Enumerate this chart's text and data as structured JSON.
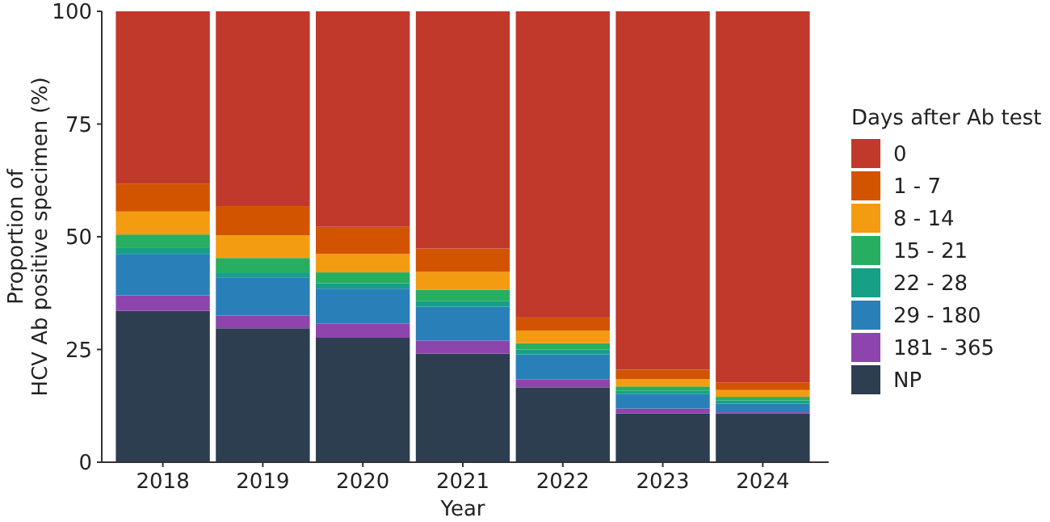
{
  "chart_data": {
    "type": "bar",
    "stacked": true,
    "xlabel": "Year",
    "ylabel": "Proportion of\nHCV Ab positive specimen (%)",
    "legend_title": "Days after Ab test",
    "legend": "right",
    "categories": [
      "2018",
      "2019",
      "2020",
      "2021",
      "2022",
      "2023",
      "2024"
    ],
    "ylim": [
      0,
      100
    ],
    "yticks": [
      0,
      25,
      50,
      75,
      100
    ],
    "series": [
      {
        "name": "NP",
        "color": "#2c3e50",
        "values": [
          33.6,
          29.7,
          27.6,
          24.1,
          16.6,
          10.8,
          10.8
        ]
      },
      {
        "name": "181 - 365",
        "color": "#8e44ad",
        "values": [
          3.4,
          2.8,
          3.1,
          2.9,
          1.8,
          1.1,
          0.3
        ]
      },
      {
        "name": "29 - 180",
        "color": "#2980b9",
        "values": [
          9.2,
          8.5,
          7.8,
          7.5,
          5.5,
          3.2,
          1.9
        ]
      },
      {
        "name": "22 - 28",
        "color": "#16a085",
        "values": [
          1.3,
          1.1,
          1.2,
          1.2,
          1.1,
          0.8,
          0.7
        ]
      },
      {
        "name": "15 - 21",
        "color": "#27ae60",
        "values": [
          3.0,
          3.2,
          2.4,
          2.5,
          1.4,
          0.9,
          0.8
        ]
      },
      {
        "name": "8 - 14",
        "color": "#f39c12",
        "values": [
          5.1,
          5.0,
          4.1,
          4.0,
          2.8,
          1.6,
          1.5
        ]
      },
      {
        "name": "1 - 7",
        "color": "#d35400",
        "values": [
          6.2,
          6.5,
          6.0,
          5.2,
          2.9,
          2.1,
          1.7
        ]
      },
      {
        "name": "0",
        "color": "#c0392b",
        "values": [
          38.2,
          43.2,
          47.8,
          52.6,
          67.9,
          79.5,
          82.3
        ]
      }
    ]
  }
}
